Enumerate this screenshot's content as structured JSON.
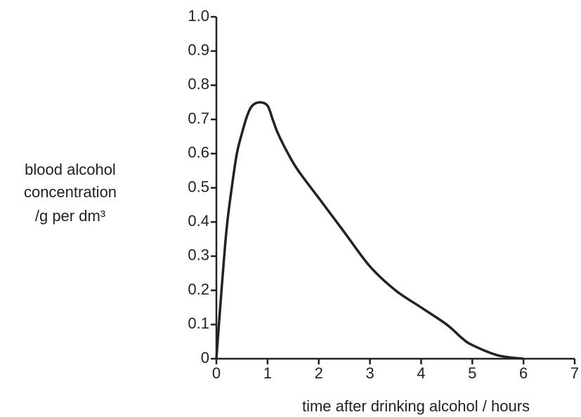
{
  "chart_data": {
    "type": "line",
    "y_label": [
      "blood alcohol",
      "concentration",
      "/g per dm³"
    ],
    "x_label": "time after drinking alcohol / hours",
    "x": [
      0,
      0.1,
      0.2,
      0.3,
      0.4,
      0.5,
      0.6,
      0.7,
      0.85,
      1.0,
      1.1,
      1.2,
      1.4,
      1.6,
      2,
      2.5,
      3,
      3.5,
      4,
      4.5,
      4.8,
      5,
      5.5,
      6
    ],
    "series": [
      {
        "color": "#222222",
        "values": [
          0,
          0.2,
          0.38,
          0.5,
          0.6,
          0.66,
          0.71,
          0.74,
          0.75,
          0.74,
          0.7,
          0.66,
          0.6,
          0.55,
          0.47,
          0.37,
          0.27,
          0.2,
          0.15,
          0.1,
          0.06,
          0.04,
          0.01,
          0
        ]
      }
    ],
    "xlim": [
      0,
      7
    ],
    "xticks": [
      0,
      1,
      2,
      3,
      4,
      5,
      6,
      7
    ],
    "ylim": [
      0,
      1
    ],
    "yticks": [
      0,
      0.1,
      0.2,
      0.3,
      0.4,
      0.5,
      0.6,
      0.7,
      0.8,
      0.9,
      {
        "value": 1,
        "label": "1.0"
      }
    ]
  }
}
